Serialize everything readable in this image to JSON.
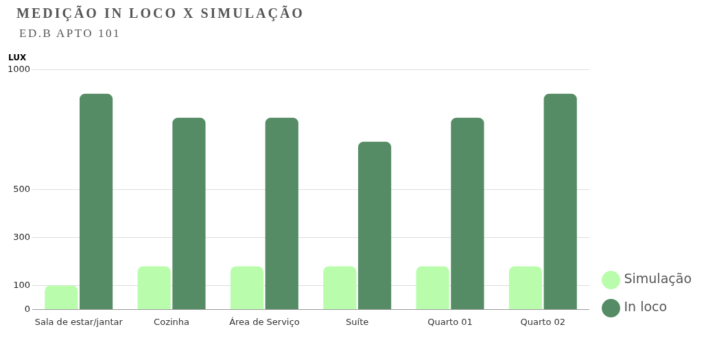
{
  "chart_data": {
    "type": "bar",
    "title": "MEDIÇÃO IN LOCO X SIMULAÇÃO",
    "subtitle": "ED.B APTO 101",
    "ylabel": "LUX",
    "categories": [
      "Sala de estar/jantar",
      "Cozinha",
      "Área de Serviço",
      "Suíte",
      "Quarto 01",
      "Quarto 02"
    ],
    "series": [
      {
        "name": "Simulação",
        "color": "#b9fdac",
        "values": [
          100,
          180,
          180,
          180,
          180,
          180
        ]
      },
      {
        "name": "In loco",
        "color": "#558b65",
        "values": [
          900,
          800,
          800,
          700,
          800,
          900
        ]
      }
    ],
    "ylim": [
      0,
      1000
    ],
    "yticks": [
      0,
      100,
      300,
      500,
      1000
    ],
    "grid": "y",
    "legend": "bottom right"
  }
}
